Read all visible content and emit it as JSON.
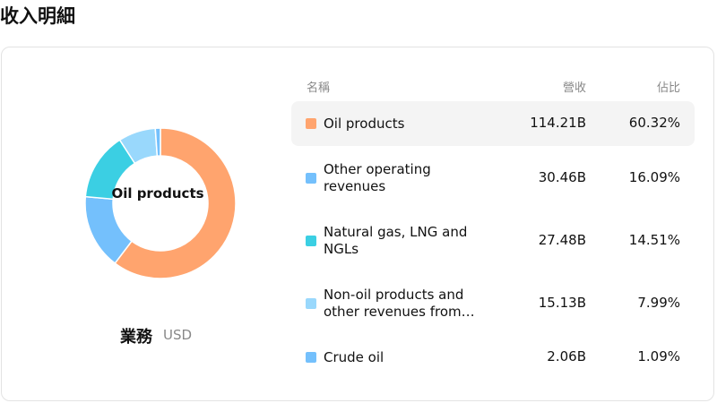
{
  "header": {
    "title": "收入明細"
  },
  "chart_data": {
    "type": "pie",
    "center_label": "Oil products",
    "caption": "業務",
    "unit": "USD",
    "columns": [
      "名稱",
      "營收",
      "佔比"
    ],
    "categories": [
      "Oil products",
      "Other operating revenues",
      "Natural gas, LNG and NGLs",
      "Non-oil products and other revenues from…",
      "Crude oil"
    ],
    "colors": [
      "#ffa46e",
      "#74c0fc",
      "#3bcfe3",
      "#99d8fc",
      "#74c0fc"
    ],
    "revenue": [
      114.21,
      30.46,
      27.48,
      15.13,
      2.06
    ],
    "revenue_labels": [
      "114.21B",
      "30.46B",
      "27.48B",
      "15.13B",
      "2.06B"
    ],
    "values": [
      60.32,
      16.09,
      14.51,
      7.99,
      1.09
    ],
    "value_labels": [
      "60.32%",
      "16.09%",
      "14.51%",
      "7.99%",
      "1.09%"
    ],
    "selected": 0
  }
}
